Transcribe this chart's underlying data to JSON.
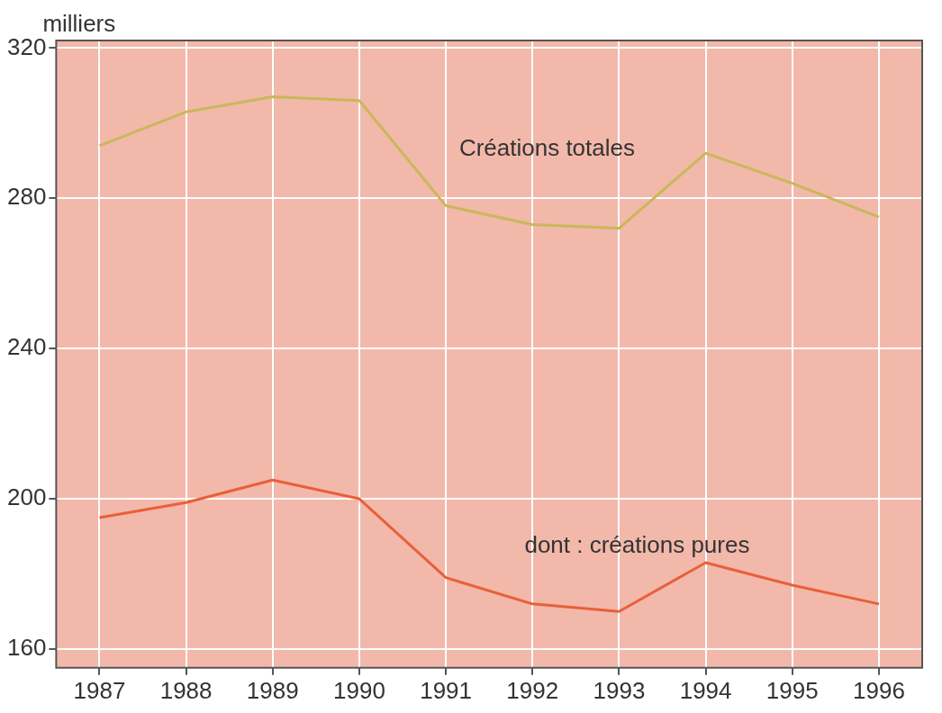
{
  "chart_data": {
    "type": "line",
    "ylabel": "milliers",
    "categories": [
      "1987",
      "1988",
      "1989",
      "1990",
      "1991",
      "1992",
      "1993",
      "1994",
      "1995",
      "1996"
    ],
    "series": [
      {
        "name": "Créations totales",
        "color": "#c9b85a",
        "values": [
          294,
          303,
          307,
          306,
          278,
          273,
          272,
          292,
          284,
          275
        ]
      },
      {
        "name": "dont : créations pures",
        "color": "#e8603a",
        "values": [
          195,
          199,
          205,
          200,
          179,
          172,
          170,
          183,
          177,
          172
        ]
      }
    ],
    "ylim": [
      155,
      322
    ],
    "yticks": [
      160,
      200,
      240,
      280,
      320
    ],
    "grid": true,
    "marker": "none",
    "line_style": "solid",
    "legend": false
  }
}
